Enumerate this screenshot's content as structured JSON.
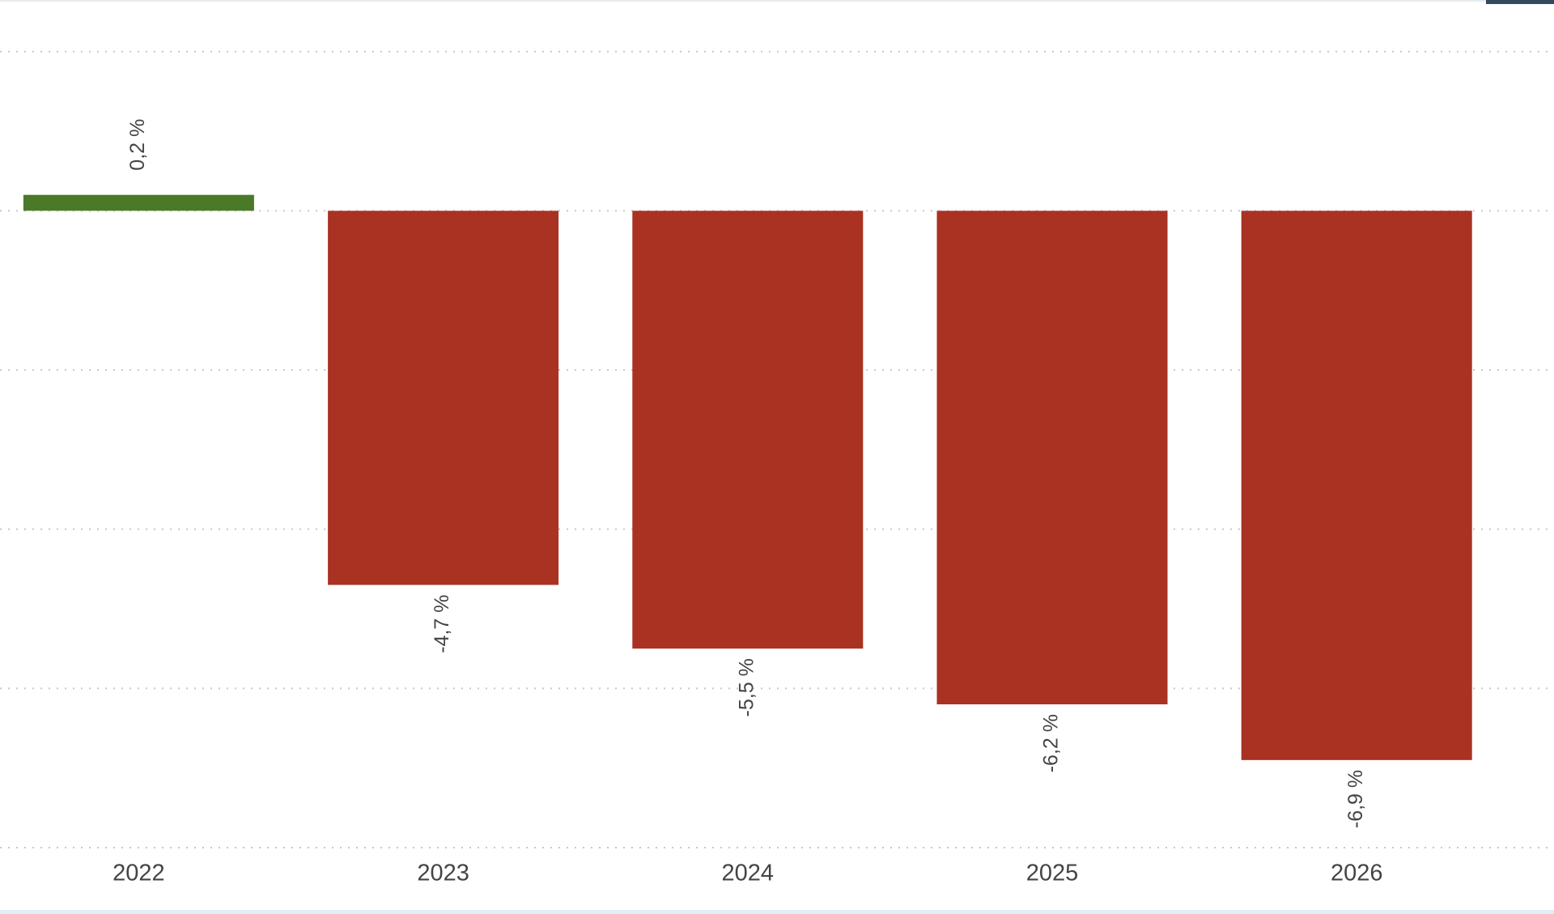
{
  "chart_data": {
    "type": "bar",
    "categories": [
      "2022",
      "2023",
      "2024",
      "2025",
      "2026"
    ],
    "values": [
      0.2,
      -4.7,
      -5.5,
      -6.2,
      -6.9
    ],
    "value_labels": [
      "0,2 %",
      "-4,7 %",
      "-5,5 %",
      "-6,2 %",
      "-6,9 %"
    ],
    "positive_color": "#4a7a28",
    "negative_color": "#a93223",
    "ylim": [
      -8,
      2
    ],
    "yticks": [
      -8,
      -6,
      -4,
      -2,
      0,
      2
    ],
    "grid": true
  }
}
